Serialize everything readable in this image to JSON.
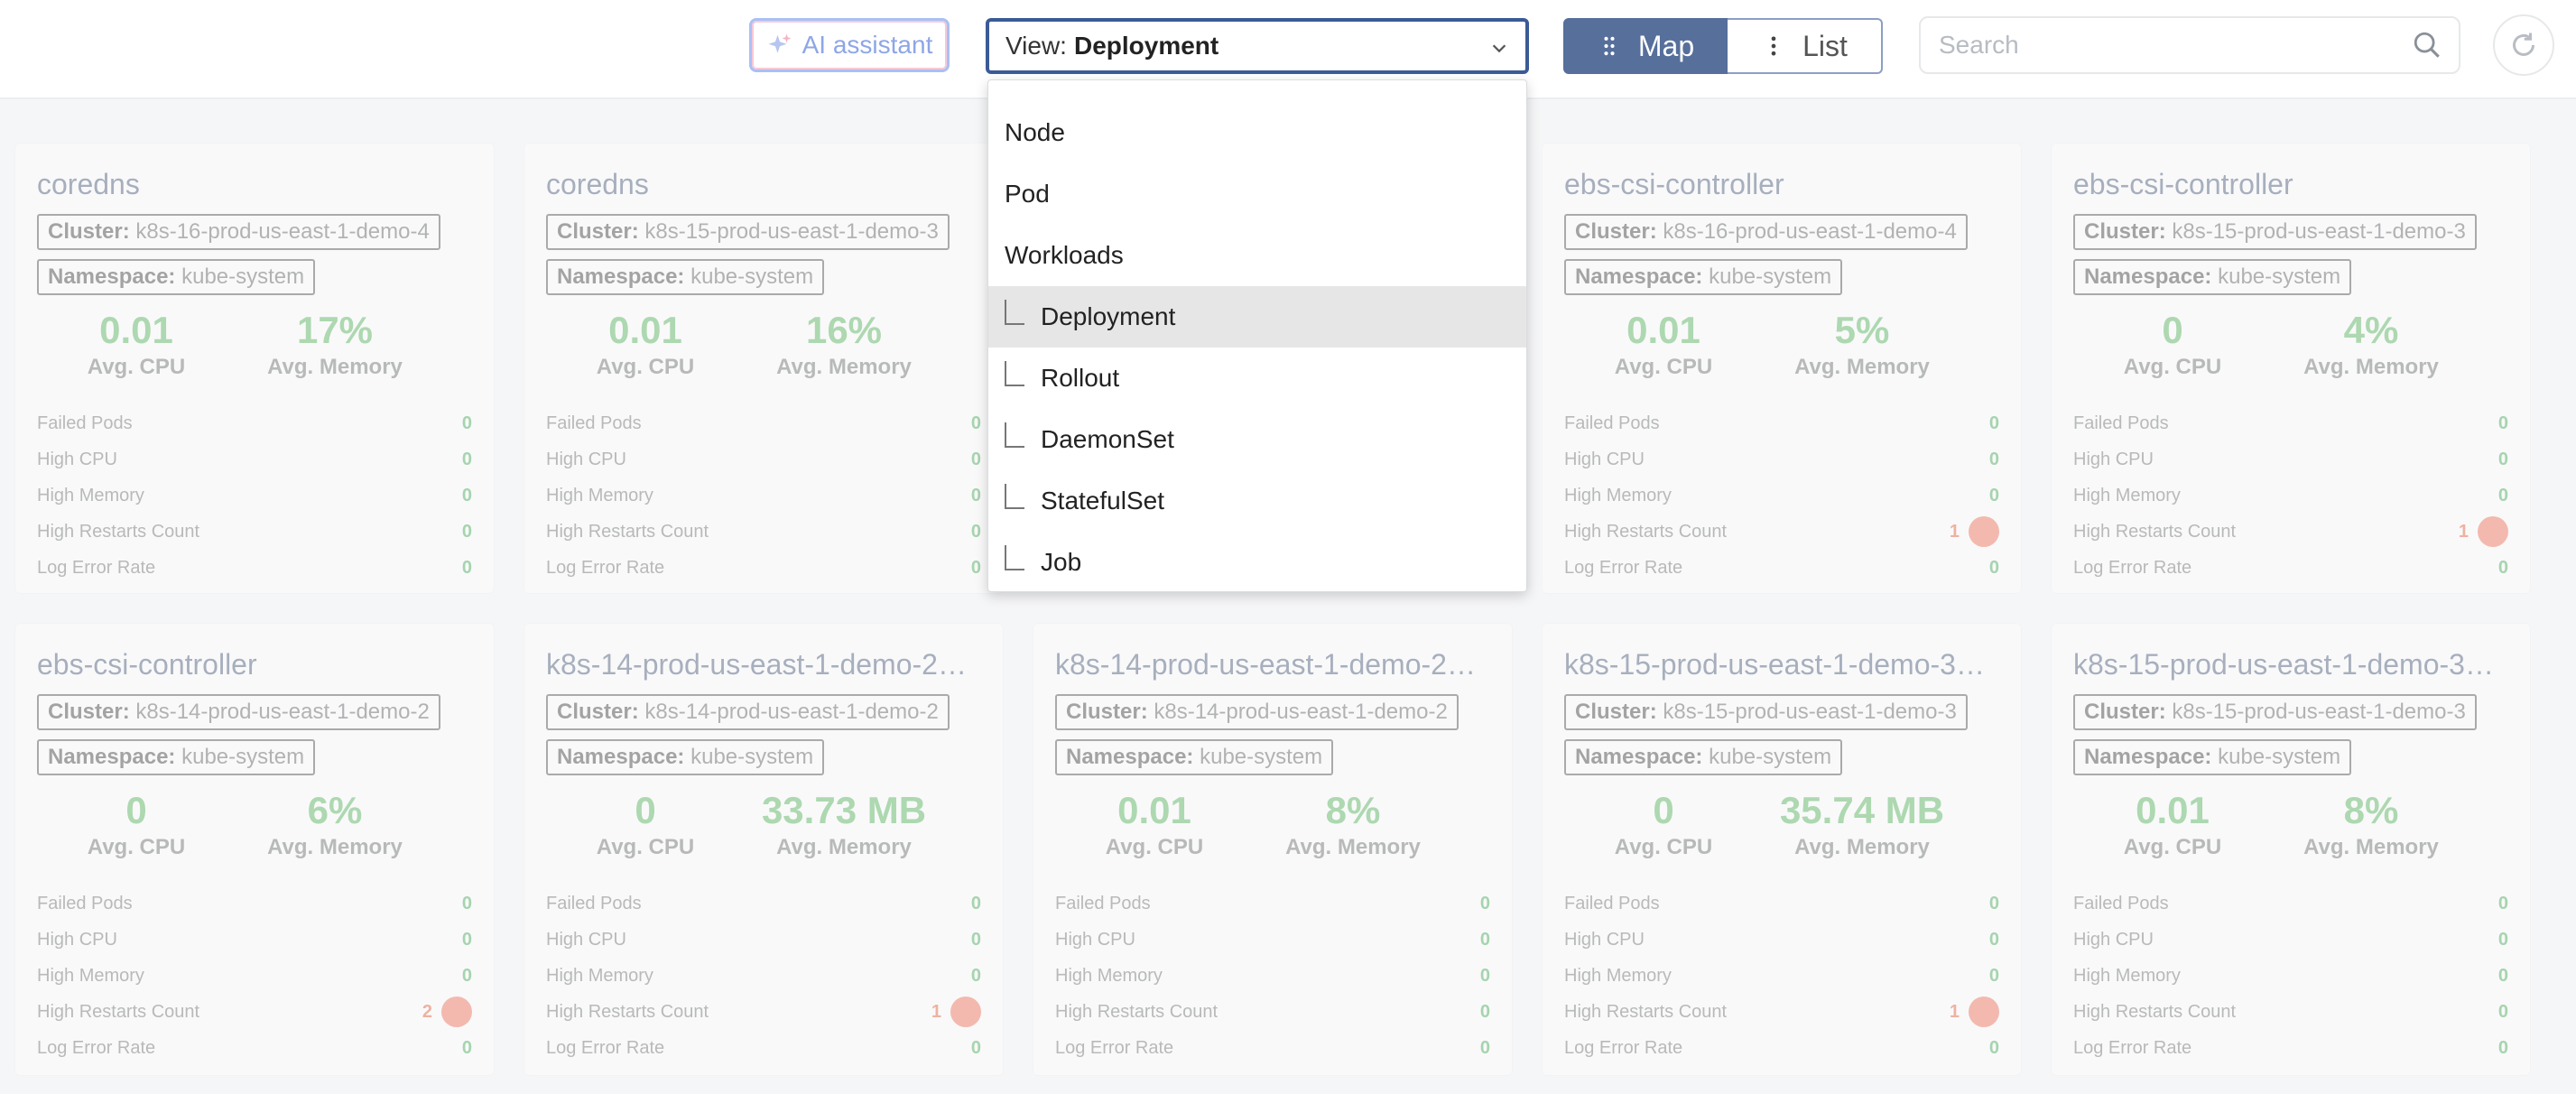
{
  "toolbar": {
    "ai_label": "AI assistant",
    "view_prefix": "View:",
    "view_value": "Deployment",
    "map_label": "Map",
    "list_label": "List",
    "search_placeholder": "Search"
  },
  "dropdown": {
    "options": [
      {
        "label": "Node",
        "child": false
      },
      {
        "label": "Pod",
        "child": false
      },
      {
        "label": "Workloads",
        "child": false
      },
      {
        "label": "Deployment",
        "child": true,
        "selected": true
      },
      {
        "label": "Rollout",
        "child": true
      },
      {
        "label": "DaemonSet",
        "child": true
      },
      {
        "label": "StatefulSet",
        "child": true
      },
      {
        "label": "Job",
        "child": true
      }
    ]
  },
  "labels": {
    "cluster": "Cluster:",
    "namespace": "Namespace:",
    "avg_cpu": "Avg. CPU",
    "avg_memory": "Avg. Memory",
    "failed_pods": "Failed Pods",
    "high_cpu": "High CPU",
    "high_memory": "High Memory",
    "high_restarts": "High Restarts Count",
    "log_error_rate": "Log Error Rate"
  },
  "cards": [
    {
      "title": "coredns",
      "cluster": "k8s-16-prod-us-east-1-demo-4",
      "namespace": "kube-system",
      "cpu": "0.01",
      "memory": "17%",
      "failed": "0",
      "high_cpu": "0",
      "high_memory": "0",
      "restarts": "0",
      "log_error": "0"
    },
    {
      "title": "coredns",
      "cluster": "k8s-15-prod-us-east-1-demo-3",
      "namespace": "kube-system",
      "cpu": "0.01",
      "memory": "16%",
      "failed": "0",
      "high_cpu": "0",
      "high_memory": "0",
      "restarts": "0",
      "log_error": "0"
    },
    {
      "title": "",
      "cluster": "",
      "namespace": "",
      "cpu": "",
      "memory": "",
      "failed": "",
      "high_cpu": "",
      "high_memory": "",
      "restarts": "",
      "log_error": ""
    },
    {
      "title": "ebs-csi-controller",
      "cluster": "k8s-16-prod-us-east-1-demo-4",
      "namespace": "kube-system",
      "cpu": "0.01",
      "memory": "5%",
      "failed": "0",
      "high_cpu": "0",
      "high_memory": "0",
      "restarts": "1",
      "log_error": "0"
    },
    {
      "title": "ebs-csi-controller",
      "cluster": "k8s-15-prod-us-east-1-demo-3",
      "namespace": "kube-system",
      "cpu": "0",
      "memory": "4%",
      "failed": "0",
      "high_cpu": "0",
      "high_memory": "0",
      "restarts": "1",
      "log_error": "0"
    },
    {
      "title": "ebs-csi-controller",
      "cluster": "k8s-14-prod-us-east-1-demo-2",
      "namespace": "kube-system",
      "cpu": "0",
      "memory": "6%",
      "failed": "0",
      "high_cpu": "0",
      "high_memory": "0",
      "restarts": "2",
      "log_error": "0"
    },
    {
      "title": "k8s-14-prod-us-east-1-demo-2…",
      "cluster": "k8s-14-prod-us-east-1-demo-2",
      "namespace": "kube-system",
      "cpu": "0",
      "memory": "33.73 MB",
      "failed": "0",
      "high_cpu": "0",
      "high_memory": "0",
      "restarts": "1",
      "log_error": "0"
    },
    {
      "title": "k8s-14-prod-us-east-1-demo-2…",
      "cluster": "k8s-14-prod-us-east-1-demo-2",
      "namespace": "kube-system",
      "cpu": "0.01",
      "memory": "8%",
      "failed": "0",
      "high_cpu": "0",
      "high_memory": "0",
      "restarts": "0",
      "log_error": "0"
    },
    {
      "title": "k8s-15-prod-us-east-1-demo-3…",
      "cluster": "k8s-15-prod-us-east-1-demo-3",
      "namespace": "kube-system",
      "cpu": "0",
      "memory": "35.74 MB",
      "failed": "0",
      "high_cpu": "0",
      "high_memory": "0",
      "restarts": "1",
      "log_error": "0"
    },
    {
      "title": "k8s-15-prod-us-east-1-demo-3…",
      "cluster": "k8s-15-prod-us-east-1-demo-3",
      "namespace": "kube-system",
      "cpu": "0.01",
      "memory": "8%",
      "failed": "0",
      "high_cpu": "0",
      "high_memory": "0",
      "restarts": "0",
      "log_error": "0"
    }
  ]
}
